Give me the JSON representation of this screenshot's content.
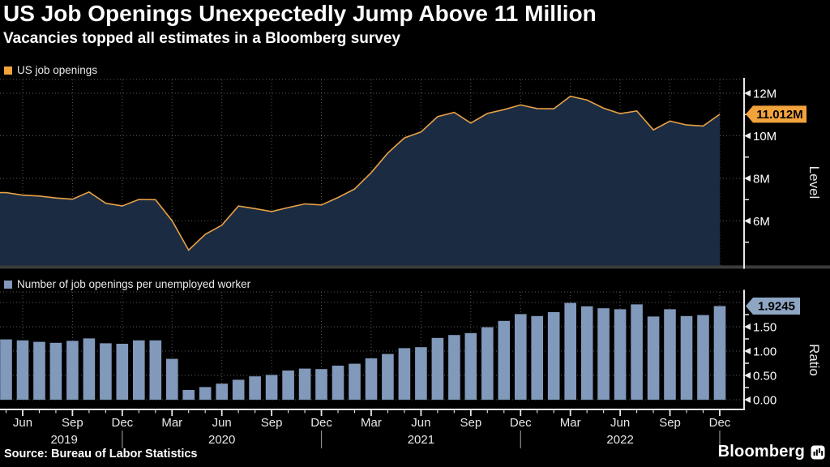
{
  "header": {
    "title": "US Job Openings Unexpectedly Jump Above 11 Million",
    "subtitle": "Vacancies topped all estimates in a Bloomberg survey"
  },
  "source": "Source: Bureau of Labor Statistics",
  "branding": {
    "logo_text": "Bloomberg"
  },
  "colors": {
    "background": "#000000",
    "text": "#ffffff",
    "grid": "#5a5a5a",
    "axis": "#e9e9e9",
    "accent_orange": "#f2a33c",
    "line_orange": "#e9a145",
    "area_fill": "#1a2b42",
    "bar_blue": "#8199ba",
    "ratio_badge": "#8ea6c3",
    "badge_text": "#000000",
    "divider": "#3c3c3c",
    "year_separator": "#8f8f8f",
    "tick_text": "#e8e8e8"
  },
  "chart_data": [
    {
      "type": "area",
      "legend": "US job openings",
      "ylabel": "Level",
      "unit": "millions",
      "ylim": [
        3.9,
        12.65
      ],
      "grid_on": true,
      "legend_position": "top-left",
      "ytick_values": [
        6,
        8,
        10,
        12
      ],
      "ytick_labels": [
        "6M",
        "8M",
        "10M",
        "12M"
      ],
      "ytick_minor": [
        5,
        7,
        9,
        11
      ],
      "grid_values": [
        6,
        8,
        10,
        12
      ],
      "last_value": 11.012,
      "last_value_label": "11.012M",
      "months": [
        "2019-05",
        "2019-06",
        "2019-07",
        "2019-08",
        "2019-09",
        "2019-10",
        "2019-11",
        "2019-12",
        "2020-01",
        "2020-02",
        "2020-03",
        "2020-04",
        "2020-05",
        "2020-06",
        "2020-07",
        "2020-08",
        "2020-09",
        "2020-10",
        "2020-11",
        "2020-12",
        "2021-01",
        "2021-02",
        "2021-03",
        "2021-04",
        "2021-05",
        "2021-06",
        "2021-07",
        "2021-08",
        "2021-09",
        "2021-10",
        "2021-11",
        "2021-12",
        "2022-01",
        "2022-02",
        "2022-03",
        "2022-04",
        "2022-05",
        "2022-06",
        "2022-07",
        "2022-08",
        "2022-09",
        "2022-10",
        "2022-11",
        "2022-12"
      ],
      "values": [
        7.33,
        7.21,
        7.17,
        7.08,
        7.02,
        7.36,
        6.83,
        6.7,
        7.01,
        7.0,
        6.01,
        4.63,
        5.37,
        5.8,
        6.7,
        6.58,
        6.44,
        6.63,
        6.8,
        6.75,
        7.1,
        7.5,
        8.27,
        9.19,
        9.9,
        10.18,
        10.9,
        11.1,
        10.6,
        11.05,
        11.23,
        11.45,
        11.28,
        11.27,
        11.86,
        11.68,
        11.3,
        11.04,
        11.17,
        10.28,
        10.69,
        10.51,
        10.46,
        11.012
      ]
    },
    {
      "type": "bar",
      "legend": "Number of job openings per unemployed worker",
      "ylabel": "Ratio",
      "ylim": [
        0,
        2.22
      ],
      "grid_on": true,
      "legend_position": "top-left",
      "ytick_values": [
        0,
        0.5,
        1,
        1.5
      ],
      "ytick_labels": [
        "0.00",
        "0.50",
        "1.00",
        "1.50"
      ],
      "ytick_minor": [
        0.25,
        0.75,
        1.25,
        1.75
      ],
      "grid_values": [
        0,
        0.5,
        1,
        1.5,
        2
      ],
      "last_value": 1.9245,
      "last_value_label": "1.9245",
      "values": [
        1.24,
        1.22,
        1.19,
        1.17,
        1.21,
        1.26,
        1.16,
        1.15,
        1.22,
        1.22,
        0.84,
        0.2,
        0.26,
        0.33,
        0.41,
        0.48,
        0.51,
        0.6,
        0.64,
        0.63,
        0.7,
        0.74,
        0.85,
        0.94,
        1.06,
        1.08,
        1.27,
        1.33,
        1.37,
        1.49,
        1.62,
        1.76,
        1.72,
        1.8,
        1.99,
        1.92,
        1.88,
        1.86,
        1.96,
        1.71,
        1.86,
        1.72,
        1.74,
        1.9245
      ]
    }
  ],
  "x_axis": {
    "month_tick_labels": [
      "Jun",
      "Sep",
      "Dec",
      "Mar",
      "Jun",
      "Sep",
      "Dec",
      "Mar",
      "Jun",
      "Sep",
      "Dec",
      "Mar",
      "Jun",
      "Sep",
      "Dec"
    ],
    "year_labels": [
      "2019",
      "2020",
      "2021",
      "2022"
    ]
  }
}
